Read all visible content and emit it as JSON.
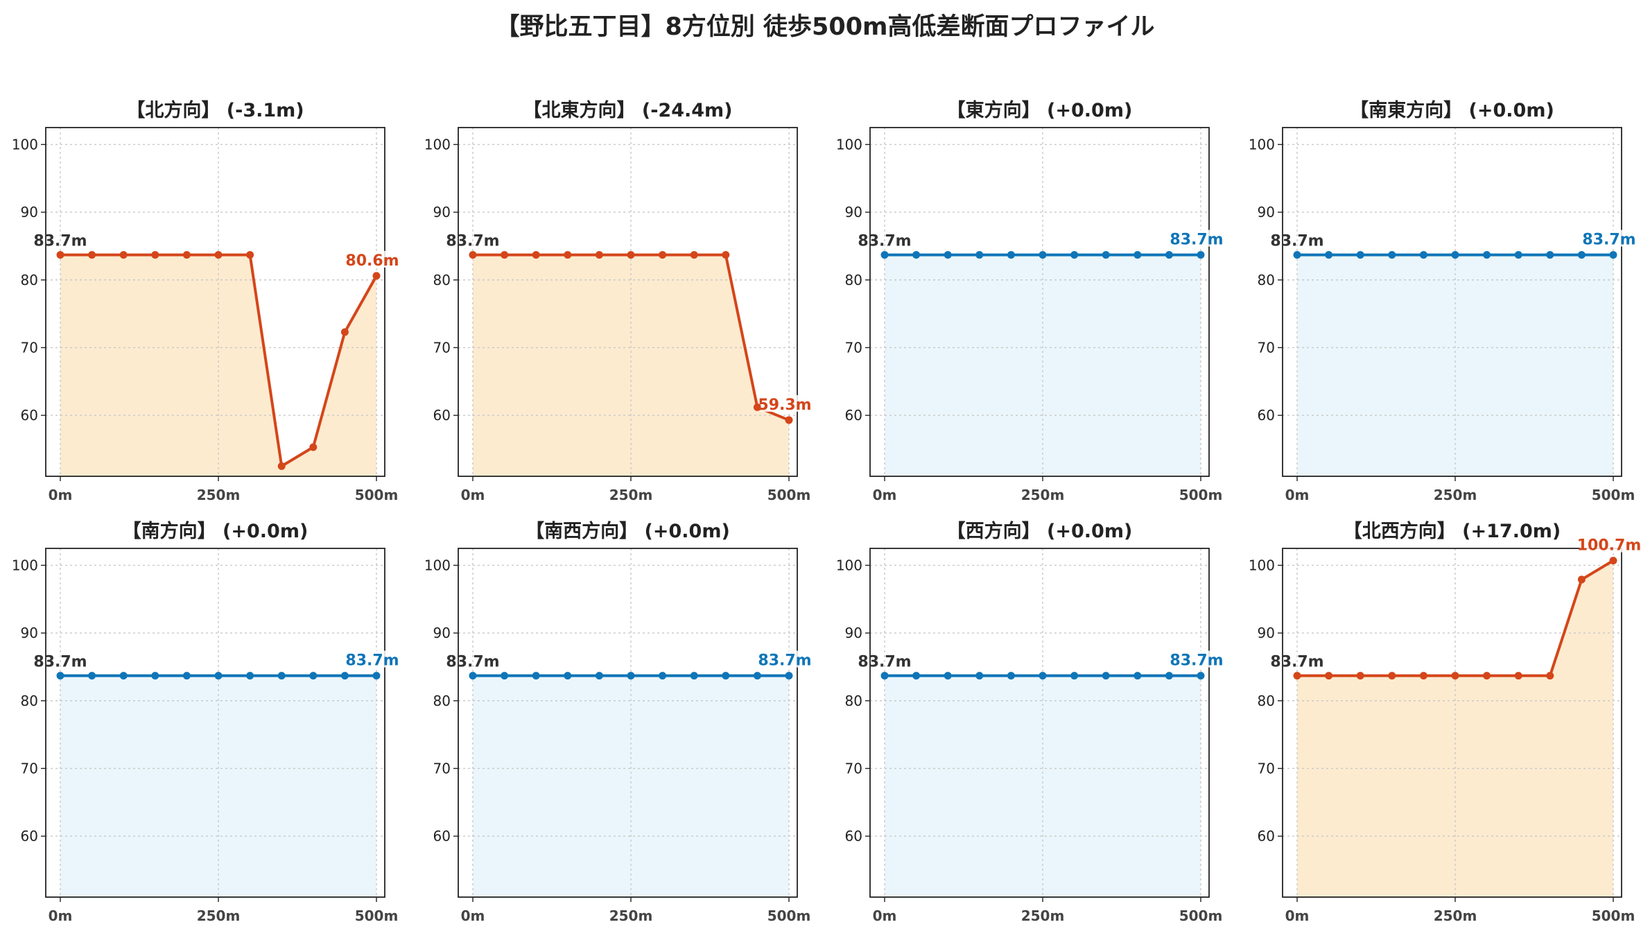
{
  "title": "【野比五丁目】8方位別 徒歩500m高低差断面プロファイル",
  "colors": {
    "descend": "#d4461a",
    "descend_fill": "#fdebd0",
    "flat": "#0f75b8",
    "flat_fill": "#eaf6fb",
    "start_label": "#333333"
  },
  "chart_data": [
    {
      "type": "line",
      "title": "【北方向】 (-3.1m)",
      "x": [
        0,
        50,
        100,
        150,
        200,
        250,
        300,
        350,
        400,
        450,
        500
      ],
      "values": [
        83.7,
        83.7,
        83.7,
        83.7,
        83.7,
        83.7,
        83.7,
        52.5,
        55.3,
        72.3,
        80.6
      ],
      "start_label": "83.7m",
      "end_label": "80.6m",
      "trend": "change",
      "x_ticks": [
        "0m",
        "250m",
        "500m"
      ],
      "y_ticks": [
        "60",
        "70",
        "80",
        "90",
        "100"
      ],
      "ylim": [
        51,
        102.5
      ],
      "grid": true
    },
    {
      "type": "line",
      "title": "【北東方向】 (-24.4m)",
      "x": [
        0,
        50,
        100,
        150,
        200,
        250,
        300,
        350,
        400,
        450,
        500
      ],
      "values": [
        83.7,
        83.7,
        83.7,
        83.7,
        83.7,
        83.7,
        83.7,
        83.7,
        83.7,
        61.2,
        59.3
      ],
      "start_label": "83.7m",
      "end_label": "59.3m",
      "trend": "change",
      "x_ticks": [
        "0m",
        "250m",
        "500m"
      ],
      "y_ticks": [
        "60",
        "70",
        "80",
        "90",
        "100"
      ],
      "ylim": [
        51,
        102.5
      ],
      "grid": true
    },
    {
      "type": "line",
      "title": "【東方向】 (+0.0m)",
      "x": [
        0,
        50,
        100,
        150,
        200,
        250,
        300,
        350,
        400,
        450,
        500
      ],
      "values": [
        83.7,
        83.7,
        83.7,
        83.7,
        83.7,
        83.7,
        83.7,
        83.7,
        83.7,
        83.7,
        83.7
      ],
      "start_label": "83.7m",
      "end_label": "83.7m",
      "trend": "flat",
      "x_ticks": [
        "0m",
        "250m",
        "500m"
      ],
      "y_ticks": [
        "60",
        "70",
        "80",
        "90",
        "100"
      ],
      "ylim": [
        51,
        102.5
      ],
      "grid": true
    },
    {
      "type": "line",
      "title": "【南東方向】 (+0.0m)",
      "x": [
        0,
        50,
        100,
        150,
        200,
        250,
        300,
        350,
        400,
        450,
        500
      ],
      "values": [
        83.7,
        83.7,
        83.7,
        83.7,
        83.7,
        83.7,
        83.7,
        83.7,
        83.7,
        83.7,
        83.7
      ],
      "start_label": "83.7m",
      "end_label": "83.7m",
      "trend": "flat",
      "x_ticks": [
        "0m",
        "250m",
        "500m"
      ],
      "y_ticks": [
        "60",
        "70",
        "80",
        "90",
        "100"
      ],
      "ylim": [
        51,
        102.5
      ],
      "grid": true
    },
    {
      "type": "line",
      "title": "【南方向】 (+0.0m)",
      "x": [
        0,
        50,
        100,
        150,
        200,
        250,
        300,
        350,
        400,
        450,
        500
      ],
      "values": [
        83.7,
        83.7,
        83.7,
        83.7,
        83.7,
        83.7,
        83.7,
        83.7,
        83.7,
        83.7,
        83.7
      ],
      "start_label": "83.7m",
      "end_label": "83.7m",
      "trend": "flat",
      "x_ticks": [
        "0m",
        "250m",
        "500m"
      ],
      "y_ticks": [
        "60",
        "70",
        "80",
        "90",
        "100"
      ],
      "ylim": [
        51,
        102.5
      ],
      "grid": true
    },
    {
      "type": "line",
      "title": "【南西方向】 (+0.0m)",
      "x": [
        0,
        50,
        100,
        150,
        200,
        250,
        300,
        350,
        400,
        450,
        500
      ],
      "values": [
        83.7,
        83.7,
        83.7,
        83.7,
        83.7,
        83.7,
        83.7,
        83.7,
        83.7,
        83.7,
        83.7
      ],
      "start_label": "83.7m",
      "end_label": "83.7m",
      "trend": "flat",
      "x_ticks": [
        "0m",
        "250m",
        "500m"
      ],
      "y_ticks": [
        "60",
        "70",
        "80",
        "90",
        "100"
      ],
      "ylim": [
        51,
        102.5
      ],
      "grid": true
    },
    {
      "type": "line",
      "title": "【西方向】 (+0.0m)",
      "x": [
        0,
        50,
        100,
        150,
        200,
        250,
        300,
        350,
        400,
        450,
        500
      ],
      "values": [
        83.7,
        83.7,
        83.7,
        83.7,
        83.7,
        83.7,
        83.7,
        83.7,
        83.7,
        83.7,
        83.7
      ],
      "start_label": "83.7m",
      "end_label": "83.7m",
      "trend": "flat",
      "x_ticks": [
        "0m",
        "250m",
        "500m"
      ],
      "y_ticks": [
        "60",
        "70",
        "80",
        "90",
        "100"
      ],
      "ylim": [
        51,
        102.5
      ],
      "grid": true
    },
    {
      "type": "line",
      "title": "【北西方向】 (+17.0m)",
      "x": [
        0,
        50,
        100,
        150,
        200,
        250,
        300,
        350,
        400,
        450,
        500
      ],
      "values": [
        83.7,
        83.7,
        83.7,
        83.7,
        83.7,
        83.7,
        83.7,
        83.7,
        83.7,
        97.9,
        100.7
      ],
      "start_label": "83.7m",
      "end_label": "100.7m",
      "trend": "change",
      "x_ticks": [
        "0m",
        "250m",
        "500m"
      ],
      "y_ticks": [
        "60",
        "70",
        "80",
        "90",
        "100"
      ],
      "ylim": [
        51,
        102.5
      ],
      "grid": true
    }
  ]
}
